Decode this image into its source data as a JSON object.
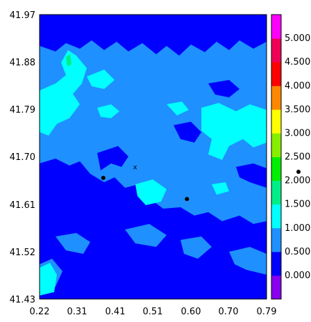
{
  "chart_data": {
    "type": "heatmap",
    "title": "",
    "xlabel": "",
    "ylabel": "",
    "xlim": [
      0.22,
      0.79
    ],
    "ylim": [
      41.43,
      41.97
    ],
    "x_ticks": [
      "0.22",
      "0.31",
      "0.41",
      "0.51",
      "0.60",
      "0.70",
      "0.79"
    ],
    "y_ticks": [
      "41.97",
      "41.88",
      "41.79",
      "41.70",
      "41.61",
      "41.52",
      "41.43"
    ],
    "colorbar": {
      "labels": [
        "0.000",
        "0.500",
        "1.000",
        "1.500",
        "2.000",
        "2.500",
        "3.000",
        "3.500",
        "4.000",
        "4.500",
        "5.000"
      ],
      "colors": [
        "#8800ee",
        "#0000ff",
        "#1e90ff",
        "#00ffff",
        "#00ee88",
        "#00ee00",
        "#88ee00",
        "#ffff00",
        "#ff8800",
        "#ff0000",
        "#ee0055",
        "#ff00ff"
      ]
    },
    "fill_levels": {
      "dominant_band": "0.500-1.000",
      "low_band": "0.000-0.500",
      "high_band": "1.000-1.500",
      "peak_band": "1.500-2.000"
    },
    "markers": [
      {
        "type": "dot",
        "x": 0.38,
        "y": 41.66
      },
      {
        "type": "dot",
        "x": 0.59,
        "y": 41.62
      },
      {
        "type": "cross",
        "label": "x",
        "x": 0.46,
        "y": 41.68
      }
    ],
    "off_axis_dot": true
  }
}
